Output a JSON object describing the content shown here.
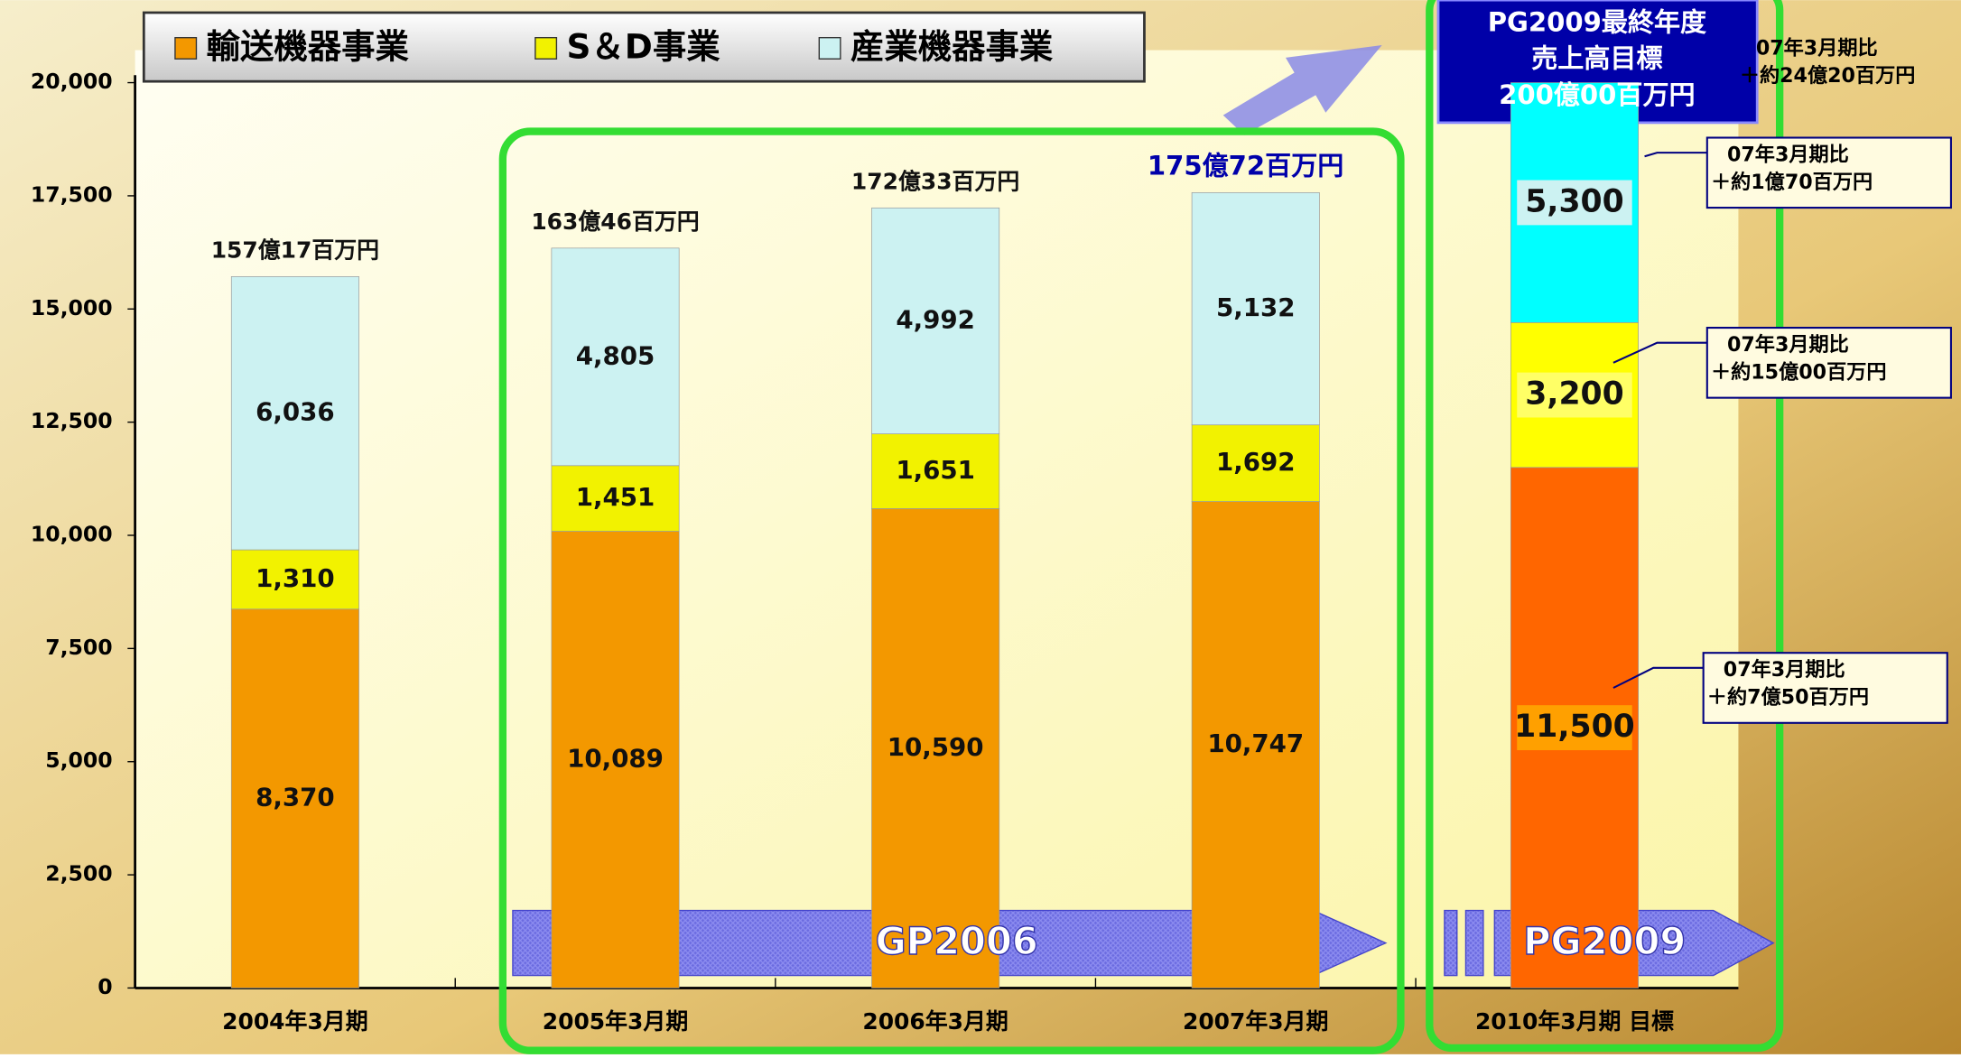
{
  "chart_data": {
    "type": "stacked_bar",
    "categories": [
      "2004年3月期",
      "2005年3月期",
      "2006年3月期",
      "2007年3月期",
      "2010年3月期 目標"
    ],
    "series": [
      {
        "name": "輸送機器事業",
        "color": "#f39800",
        "colors": [
          "#f39800",
          "#f39800",
          "#f39800",
          "#f39800",
          "#ff6600"
        ],
        "values": [
          8370,
          10089,
          10590,
          10747,
          11500
        ],
        "value_labels": [
          "8,370",
          "10,089",
          "10,590",
          "10,747",
          "11,500"
        ]
      },
      {
        "name": "S＆D事業",
        "color": "#f2f200",
        "colors": [
          "#f2f200",
          "#f2f200",
          "#f2f200",
          "#f2f200",
          "#ffff00"
        ],
        "values": [
          1310,
          1451,
          1651,
          1692,
          3200
        ],
        "value_labels": [
          "1,310",
          "1,451",
          "1,651",
          "1,692",
          "3,200"
        ]
      },
      {
        "name": "産業機器事業",
        "color": "#ccf2f2",
        "colors": [
          "#ccf2f2",
          "#ccf2f2",
          "#ccf2f2",
          "#ccf2f2",
          "#00ffff"
        ],
        "values": [
          6036,
          4805,
          4992,
          5132,
          5300
        ],
        "value_labels": [
          "6,036",
          "4,805",
          "4,992",
          "5,132",
          "5,300"
        ]
      }
    ],
    "ylim": [
      0,
      20000
    ],
    "yticks": [
      0,
      {
        "value": 2500,
        "label": "2,500"
      },
      {
        "value": 5000,
        "label": "5,000"
      },
      {
        "value": 7500,
        "label": "7,500"
      },
      {
        "value": 10000,
        "label": "10,000"
      },
      {
        "value": 12500,
        "label": "12,500"
      },
      {
        "value": 15000,
        "label": "15,000"
      },
      {
        "value": 17500,
        "label": "17,500"
      },
      {
        "value": 20000,
        "label": "20,000"
      }
    ],
    "totals": [
      "157億17百万円",
      "163億46百万円",
      "172億33百万円",
      "175億72百万円"
    ],
    "target_box": [
      "PG2009最終年度",
      "売上高目標",
      "200億00百万円"
    ],
    "comparisons": [
      [
        "07年3月期比",
        "＋約24億20百万円"
      ],
      [
        "07年3月期比",
        "＋約1億70百万円"
      ],
      [
        "07年3月期比",
        "＋約15億00百万円"
      ],
      [
        "07年3月期比",
        "＋約7億50百万円"
      ]
    ],
    "phases": [
      "GP2006",
      "PG2009"
    ]
  }
}
